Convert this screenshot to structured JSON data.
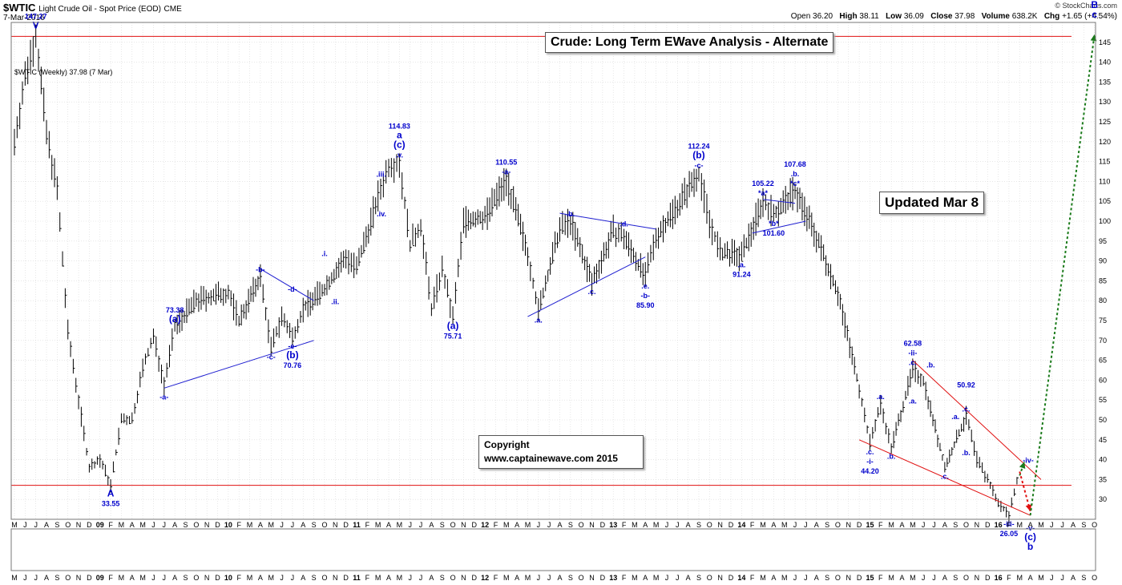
{
  "header": {
    "symbol": "$WTIC",
    "description": "Light Crude Oil - Spot Price (EOD)",
    "exchange": "CME",
    "date": "7-Mar-2016",
    "credit": "© StockCharts.com",
    "open_label": "Open",
    "open": "36.20",
    "high_label": "High",
    "high": "38.11",
    "low_label": "Low",
    "low": "36.09",
    "close_label": "Close",
    "close": "37.98",
    "volume_label": "Volume",
    "volume": "638.2K",
    "chg_label": "Chg",
    "chg": "+1.65 (+4.54%)",
    "legend": "$WTIC (Weekly) 37.98 (7 Mar)"
  },
  "title_box": "Crude: Long Term EWave Analysis - Alternate",
  "updated_box": "Updated Mar 8",
  "copyright_box": {
    "line1": "Copyright",
    "line2": "www.captainewave.com 2015"
  },
  "colors": {
    "price": "#000000",
    "wave_label": "#0000cc",
    "channel_blue": "#1f1fd0",
    "channel_red": "#e01010",
    "up_arrow": "#1a7a1a",
    "down_arrow": "#e01010"
  },
  "chart_data": {
    "type": "ohlc-bar",
    "frequency": "weekly",
    "x_range": [
      "2008-05",
      "2016-10"
    ],
    "ylim": [
      25,
      150
    ],
    "y_ticks": [
      30,
      35,
      40,
      45,
      50,
      55,
      60,
      65,
      70,
      75,
      80,
      85,
      90,
      95,
      100,
      105,
      110,
      115,
      120,
      125,
      130,
      135,
      140,
      145
    ],
    "y_axis_side": "right",
    "grid": true,
    "x_tick_labels": [
      "M",
      "J",
      "J",
      "A",
      "S",
      "O",
      "N",
      "D",
      "09",
      "F",
      "M",
      "A",
      "M",
      "J",
      "J",
      "A",
      "S",
      "O",
      "N",
      "D",
      "10",
      "F",
      "M",
      "A",
      "M",
      "J",
      "J",
      "A",
      "S",
      "O",
      "N",
      "D",
      "11",
      "F",
      "M",
      "A",
      "M",
      "J",
      "J",
      "A",
      "S",
      "O",
      "N",
      "D",
      "12",
      "F",
      "M",
      "A",
      "M",
      "J",
      "J",
      "A",
      "S",
      "O",
      "N",
      "D",
      "13",
      "F",
      "M",
      "A",
      "M",
      "J",
      "J",
      "A",
      "S",
      "O",
      "N",
      "D",
      "14",
      "F",
      "M",
      "A",
      "M",
      "J",
      "J",
      "A",
      "S",
      "O",
      "N",
      "D",
      "15",
      "F",
      "M",
      "A",
      "M",
      "J",
      "J",
      "A",
      "S",
      "O",
      "N",
      "D",
      "16",
      "F",
      "M",
      "A",
      "M",
      "J",
      "J",
      "A",
      "S",
      "O"
    ],
    "price_path": [
      [
        "2008-05",
        120
      ],
      [
        "2008-06",
        136
      ],
      [
        "2008-07",
        147.27
      ],
      [
        "2008-08",
        122
      ],
      [
        "2008-09",
        108
      ],
      [
        "2008-10",
        72
      ],
      [
        "2008-11",
        55
      ],
      [
        "2008-12",
        38
      ],
      [
        "2009-01",
        40
      ],
      [
        "2009-02",
        33.55
      ],
      [
        "2009-03",
        50
      ],
      [
        "2009-04",
        50
      ],
      [
        "2009-05",
        63
      ],
      [
        "2009-06",
        71
      ],
      [
        "2009-07",
        59
      ],
      [
        "2009-08",
        73.38
      ],
      [
        "2009-10",
        80
      ],
      [
        "2010-01",
        82
      ],
      [
        "2010-02",
        75
      ],
      [
        "2010-04",
        86
      ],
      [
        "2010-05",
        68
      ],
      [
        "2010-06",
        76
      ],
      [
        "2010-07",
        70.76
      ],
      [
        "2010-08",
        78
      ],
      [
        "2010-10",
        83
      ],
      [
        "2010-12",
        91
      ],
      [
        "2011-01",
        88
      ],
      [
        "2011-03",
        106
      ],
      [
        "2011-04",
        114
      ],
      [
        "2011-05",
        114.83
      ],
      [
        "2011-06",
        94
      ],
      [
        "2011-07",
        99
      ],
      [
        "2011-08",
        78
      ],
      [
        "2011-09",
        88
      ],
      [
        "2011-10",
        75.71
      ],
      [
        "2011-11",
        100
      ],
      [
        "2012-01",
        101
      ],
      [
        "2012-03",
        110.55
      ],
      [
        "2012-05",
        92
      ],
      [
        "2012-06",
        77.3
      ],
      [
        "2012-08",
        98
      ],
      [
        "2012-09",
        100
      ],
      [
        "2012-11",
        84.5
      ],
      [
        "2013-01",
        97.5
      ],
      [
        "2013-02",
        96
      ],
      [
        "2013-04",
        85.9
      ],
      [
        "2013-05",
        96
      ],
      [
        "2013-07",
        104
      ],
      [
        "2013-09",
        112.24
      ],
      [
        "2013-10",
        100
      ],
      [
        "2013-11",
        92
      ],
      [
        "2014-01",
        91.24
      ],
      [
        "2014-03",
        105.22
      ],
      [
        "2014-04",
        101.6
      ],
      [
        "2014-06",
        107.68
      ],
      [
        "2014-08",
        96
      ],
      [
        "2014-10",
        82
      ],
      [
        "2014-12",
        58
      ],
      [
        "2015-01",
        44.2
      ],
      [
        "2015-02",
        54
      ],
      [
        "2015-03",
        43
      ],
      [
        "2015-05",
        62.58
      ],
      [
        "2015-06",
        60
      ],
      [
        "2015-08",
        38
      ],
      [
        "2015-10",
        50.92
      ],
      [
        "2015-11",
        40
      ],
      [
        "2015-12",
        35
      ],
      [
        "2016-01",
        29
      ],
      [
        "2016-02",
        26.05
      ],
      [
        "2016-03",
        37.98
      ]
    ],
    "horizontal_lines": [
      {
        "y": 146.5,
        "color": "#e01010"
      },
      {
        "y": 33.55,
        "color": "#e01010"
      }
    ],
    "trend_lines": [
      {
        "color": "#1f1fd0",
        "from": [
          "2009-07",
          58
        ],
        "to": [
          "2010-09",
          70
        ]
      },
      {
        "color": "#1f1fd0",
        "from": [
          "2010-04",
          88
        ],
        "to": [
          "2010-09",
          80
        ]
      },
      {
        "color": "#1f1fd0",
        "from": [
          "2012-05",
          76
        ],
        "to": [
          "2013-04",
          91
        ]
      },
      {
        "color": "#1f1fd0",
        "from": [
          "2012-08",
          102
        ],
        "to": [
          "2013-05",
          98
        ]
      },
      {
        "color": "#1f1fd0",
        "from": [
          "2014-02",
          97
        ],
        "to": [
          "2014-07",
          100
        ]
      },
      {
        "color": "#1f1fd0",
        "from": [
          "2014-03",
          105.5
        ],
        "to": [
          "2014-06",
          104.5
        ]
      },
      {
        "color": "#e01010",
        "from": [
          "2015-05",
          65
        ],
        "to": [
          "2016-05",
          35
        ]
      },
      {
        "color": "#e01010",
        "from": [
          "2014-12",
          45
        ],
        "to": [
          "2016-04",
          26
        ]
      }
    ],
    "projections": [
      {
        "color": "#1a7a1a",
        "style": "dotted",
        "from": [
          "2016-03",
          36
        ],
        "to": [
          "2016-03",
          39.5
        ],
        "label": "short up"
      },
      {
        "color": "#e01010",
        "style": "dotted",
        "from": [
          "2016-03",
          37
        ],
        "to": [
          "2016-04",
          27
        ]
      },
      {
        "color": "#1a7a1a",
        "style": "dotted",
        "from": [
          "2016-04",
          26
        ],
        "to": [
          "2016-10",
          147
        ]
      }
    ],
    "annotations": [
      {
        "lines": [
          "147.27",
          "V"
        ],
        "at": [
          "2008-07",
          147.27
        ],
        "pos": "above"
      },
      {
        "lines": [
          "A",
          "33.55"
        ],
        "at": [
          "2009-02",
          33.55
        ],
        "pos": "below"
      },
      {
        "lines": [
          "73.38",
          "(a)"
        ],
        "at": [
          "2009-08",
          73.38
        ],
        "pos": "above"
      },
      {
        "lines": [
          "-a-"
        ],
        "at": [
          "2009-07",
          58
        ],
        "pos": "below"
      },
      {
        "lines": [
          "-b-"
        ],
        "at": [
          "2010-04",
          86
        ],
        "pos": "above"
      },
      {
        "lines": [
          "-c-"
        ],
        "at": [
          "2010-05",
          68
        ],
        "pos": "below"
      },
      {
        "lines": [
          "-d-"
        ],
        "at": [
          "2010-07",
          81
        ],
        "pos": "above"
      },
      {
        "lines": [
          "-e-",
          "(b)",
          "70.76"
        ],
        "at": [
          "2010-07",
          70.76
        ],
        "pos": "below"
      },
      {
        "lines": [
          ".i."
        ],
        "at": [
          "2010-10",
          90
        ],
        "pos": "above"
      },
      {
        "lines": [
          ".ii."
        ],
        "at": [
          "2010-11",
          82
        ],
        "pos": "below"
      },
      {
        "lines": [
          "114.83",
          "a",
          "(c)",
          ".v."
        ],
        "at": [
          "2011-05",
          114.83
        ],
        "pos": "above"
      },
      {
        "lines": [
          ".iii."
        ],
        "at": [
          "2011-04",
          112
        ],
        "pos": "left"
      },
      {
        "lines": [
          ".iv."
        ],
        "at": [
          "2011-04",
          102
        ],
        "pos": "left"
      },
      {
        "lines": [
          "(a)",
          "75.71"
        ],
        "at": [
          "2011-10",
          75.71
        ],
        "pos": "below"
      },
      {
        "lines": [
          "110.55",
          "-a-"
        ],
        "at": [
          "2012-03",
          110.55
        ],
        "pos": "above"
      },
      {
        "lines": [
          ".a."
        ],
        "at": [
          "2012-06",
          77.3
        ],
        "pos": "below"
      },
      {
        "lines": [
          ".b."
        ],
        "at": [
          "2012-09",
          100
        ],
        "pos": "above"
      },
      {
        "lines": [
          ".c."
        ],
        "at": [
          "2012-11",
          84.5
        ],
        "pos": "below"
      },
      {
        "lines": [
          ".d."
        ],
        "at": [
          "2013-02",
          97.5
        ],
        "pos": "above"
      },
      {
        "lines": [
          ".e.",
          "-b-",
          "85.90"
        ],
        "at": [
          "2013-04",
          85.9
        ],
        "pos": "below"
      },
      {
        "lines": [
          "112.24",
          "(b)",
          "-c-"
        ],
        "at": [
          "2013-09",
          112.24
        ],
        "pos": "above"
      },
      {
        "lines": [
          ".a.",
          "91.24"
        ],
        "at": [
          "2014-01",
          91.24
        ],
        "pos": "below"
      },
      {
        "lines": [
          "105.22",
          "*a*"
        ],
        "at": [
          "2014-03",
          105.22
        ],
        "pos": "above"
      },
      {
        "lines": [
          "*b*",
          "101.60"
        ],
        "at": [
          "2014-04",
          101.6
        ],
        "pos": "below"
      },
      {
        "lines": [
          "107.68",
          ".b.",
          "*c*"
        ],
        "at": [
          "2014-06",
          107.68
        ],
        "pos": "above"
      },
      {
        "lines": [
          ".c.",
          "-i-",
          "44.20"
        ],
        "at": [
          "2015-01",
          44.2
        ],
        "pos": "below"
      },
      {
        "lines": [
          ".a."
        ],
        "at": [
          "2015-02",
          54
        ],
        "pos": "above"
      },
      {
        "lines": [
          ".b."
        ],
        "at": [
          "2015-03",
          43
        ],
        "pos": "below"
      },
      {
        "lines": [
          "62.58",
          "-ii-",
          ".c."
        ],
        "at": [
          "2015-05",
          62.58
        ],
        "pos": "above"
      },
      {
        "lines": [
          ".a."
        ],
        "at": [
          "2015-05",
          57
        ],
        "pos": "below"
      },
      {
        "lines": [
          ".b."
        ],
        "at": [
          "2015-06",
          62
        ],
        "pos": "above-right"
      },
      {
        "lines": [
          ".c."
        ],
        "at": [
          "2015-08",
          38
        ],
        "pos": "below"
      },
      {
        "lines": [
          "50.92"
        ],
        "at": [
          "2015-10",
          57
        ],
        "pos": "above"
      },
      {
        "lines": [
          ".a."
        ],
        "at": [
          "2015-09",
          49
        ],
        "pos": "above"
      },
      {
        "lines": [
          ".c."
        ],
        "at": [
          "2015-10",
          50.92
        ],
        "pos": "above"
      },
      {
        "lines": [
          ".b."
        ],
        "at": [
          "2015-10",
          44
        ],
        "pos": "below"
      },
      {
        "lines": [
          "-iv-"
        ],
        "at": [
          "2016-03",
          37.98
        ],
        "pos": "above-right"
      },
      {
        "lines": [
          "-iii-",
          "26.05"
        ],
        "at": [
          "2016-02",
          26.05
        ],
        "pos": "below"
      },
      {
        "lines": [
          "-v-",
          "(c)",
          "b"
        ],
        "at": [
          "2016-04",
          25
        ],
        "pos": "below"
      },
      {
        "lines": [
          "B",
          "c"
        ],
        "at": [
          "2016-10",
          150
        ],
        "pos": "above"
      }
    ]
  }
}
